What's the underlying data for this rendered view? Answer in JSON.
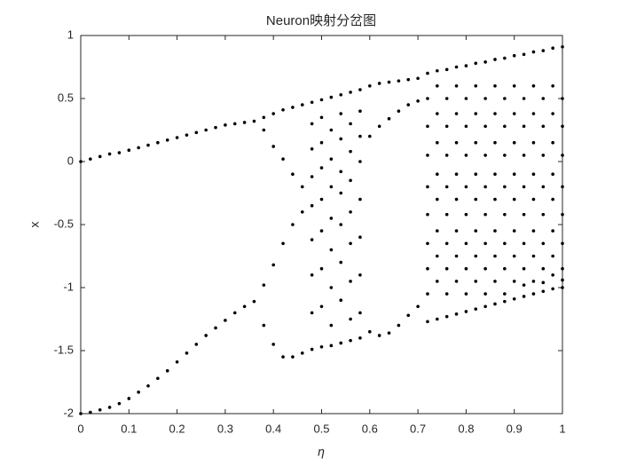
{
  "chart_data": {
    "type": "scatter",
    "title": "Neuron映射分岔图",
    "x_label": "η",
    "y_label": "x",
    "color": "#000000",
    "xlim": [
      0,
      1
    ],
    "ylim": [
      -2,
      1
    ],
    "xticks": [
      0,
      0.1,
      0.2,
      0.3,
      0.4,
      0.5,
      0.6,
      0.7,
      0.8,
      0.9,
      1
    ],
    "yticks": [
      -2,
      -1.5,
      -1,
      -0.5,
      0,
      0.5,
      1
    ],
    "x": [
      0,
      0.02,
      0.04,
      0.06,
      0.08,
      0.1,
      0.12,
      0.14,
      0.16,
      0.18,
      0.2,
      0.22,
      0.24,
      0.26,
      0.28,
      0.3,
      0.32,
      0.34,
      0.36,
      0,
      0.02,
      0.04,
      0.06,
      0.08,
      0.1,
      0.12,
      0.14,
      0.16,
      0.18,
      0.2,
      0.22,
      0.24,
      0.26,
      0.28,
      0.3,
      0.32,
      0.34,
      0.36,
      0.38,
      0.38,
      0.38,
      0.38,
      0.4,
      0.4,
      0.4,
      0.4,
      0.42,
      0.42,
      0.42,
      0.42,
      0.44,
      0.44,
      0.44,
      0.44,
      0.46,
      0.46,
      0.46,
      0.46,
      0.48,
      0.48,
      0.48,
      0.48,
      0.48,
      0.48,
      0.48,
      0.48,
      0.48,
      0.5,
      0.5,
      0.5,
      0.5,
      0.5,
      0.5,
      0.5,
      0.5,
      0.5,
      0.52,
      0.52,
      0.52,
      0.52,
      0.52,
      0.52,
      0.52,
      0.52,
      0.52,
      0.54,
      0.54,
      0.54,
      0.54,
      0.54,
      0.54,
      0.54,
      0.54,
      0.54,
      0.56,
      0.56,
      0.56,
      0.56,
      0.56,
      0.56,
      0.56,
      0.56,
      0.56,
      0.58,
      0.58,
      0.58,
      0.58,
      0.58,
      0.58,
      0.58,
      0.58,
      0.58,
      0.6,
      0.6,
      0.6,
      0.62,
      0.62,
      0.62,
      0.64,
      0.64,
      0.64,
      0.66,
      0.66,
      0.66,
      0.68,
      0.68,
      0.68,
      0.7,
      0.7,
      0.7,
      0.72,
      0.72,
      0.72,
      0.72,
      0.72,
      0.72,
      0.72,
      0.72,
      0.72,
      0.72,
      0.74,
      0.74,
      0.74,
      0.74,
      0.74,
      0.74,
      0.74,
      0.74,
      0.74,
      0.74,
      0.76,
      0.76,
      0.76,
      0.76,
      0.76,
      0.76,
      0.76,
      0.76,
      0.76,
      0.76,
      0.78,
      0.78,
      0.78,
      0.78,
      0.78,
      0.78,
      0.78,
      0.78,
      0.78,
      0.78,
      0.8,
      0.8,
      0.8,
      0.8,
      0.8,
      0.8,
      0.8,
      0.8,
      0.8,
      0.8,
      0.82,
      0.82,
      0.82,
      0.82,
      0.82,
      0.82,
      0.82,
      0.82,
      0.82,
      0.82,
      0.84,
      0.84,
      0.84,
      0.84,
      0.84,
      0.84,
      0.84,
      0.84,
      0.84,
      0.84,
      0.86,
      0.86,
      0.86,
      0.86,
      0.86,
      0.86,
      0.86,
      0.86,
      0.86,
      0.86,
      0.88,
      0.88,
      0.88,
      0.88,
      0.88,
      0.88,
      0.88,
      0.88,
      0.88,
      0.88,
      0.9,
      0.9,
      0.9,
      0.9,
      0.9,
      0.9,
      0.9,
      0.9,
      0.9,
      0.9,
      0.92,
      0.92,
      0.92,
      0.92,
      0.92,
      0.92,
      0.92,
      0.92,
      0.92,
      0.92,
      0.94,
      0.94,
      0.94,
      0.94,
      0.94,
      0.94,
      0.94,
      0.94,
      0.94,
      0.94,
      0.96,
      0.96,
      0.96,
      0.96,
      0.96,
      0.96,
      0.96,
      0.96,
      0.96,
      0.96,
      0.98,
      0.98,
      0.98,
      0.98,
      0.98,
      0.98,
      0.98,
      0.98,
      0.98,
      0.98,
      1,
      1,
      1,
      1,
      1,
      1,
      1,
      1,
      1,
      1
    ],
    "y": [
      0,
      0.02,
      0.04,
      0.06,
      0.07,
      0.09,
      0.11,
      0.13,
      0.15,
      0.17,
      0.19,
      0.21,
      0.23,
      0.25,
      0.27,
      0.29,
      0.3,
      0.31,
      0.32,
      -2,
      -1.99,
      -1.97,
      -1.95,
      -1.92,
      -1.88,
      -1.83,
      -1.78,
      -1.72,
      -1.66,
      -1.59,
      -1.52,
      -1.45,
      -1.38,
      -1.32,
      -1.26,
      -1.2,
      -1.15,
      -1.11,
      0.35,
      0.25,
      -0.98,
      -1.3,
      0.38,
      0.12,
      -0.82,
      -1.45,
      0.41,
      0.02,
      -0.65,
      -1.55,
      0.43,
      -0.1,
      -0.5,
      -1.55,
      0.45,
      -0.2,
      -0.4,
      -1.52,
      0.47,
      0.3,
      0.1,
      -0.12,
      -0.35,
      -0.62,
      -0.9,
      -1.2,
      -1.49,
      0.49,
      0.35,
      0.15,
      -0.05,
      -0.3,
      -0.55,
      -0.85,
      -1.15,
      -1.47,
      0.51,
      0.25,
      0.02,
      -0.2,
      -0.45,
      -0.7,
      -1,
      -1.3,
      -1.46,
      0.53,
      0.38,
      0.18,
      -0.08,
      -0.25,
      -0.5,
      -0.8,
      -1.1,
      -1.44,
      0.55,
      0.3,
      0.08,
      -0.15,
      -0.4,
      -0.65,
      -0.95,
      -1.25,
      -1.42,
      0.57,
      0.4,
      0.2,
      0,
      -0.3,
      -0.6,
      -0.9,
      -1.2,
      -1.4,
      0.6,
      0.2,
      -1.35,
      0.62,
      0.28,
      -1.38,
      0.63,
      0.34,
      -1.36,
      0.64,
      0.4,
      -1.3,
      0.65,
      0.45,
      -1.22,
      0.66,
      0.48,
      -1.15,
      0.7,
      0.5,
      0.28,
      0.05,
      -0.2,
      -0.42,
      -0.65,
      -0.85,
      -1.05,
      -1.27,
      0.72,
      0.6,
      0.38,
      0.15,
      -0.1,
      -0.3,
      -0.55,
      -0.75,
      -0.95,
      -1.25,
      0.73,
      0.5,
      0.28,
      0.05,
      -0.2,
      -0.42,
      -0.65,
      -0.85,
      -1.05,
      -1.23,
      0.75,
      0.6,
      0.38,
      0.15,
      -0.1,
      -0.3,
      -0.55,
      -0.75,
      -0.95,
      -1.21,
      0.76,
      0.5,
      0.28,
      0.05,
      -0.2,
      -0.42,
      -0.65,
      -0.85,
      -1.05,
      -1.19,
      0.78,
      0.6,
      0.38,
      0.15,
      -0.1,
      -0.3,
      -0.55,
      -0.75,
      -0.95,
      -1.17,
      0.79,
      0.5,
      0.28,
      0.05,
      -0.2,
      -0.42,
      -0.65,
      -0.85,
      -1.05,
      -1.15,
      0.81,
      0.6,
      0.38,
      0.15,
      -0.1,
      -0.3,
      -0.55,
      -0.75,
      -0.95,
      -1.13,
      0.82,
      0.5,
      0.28,
      0.05,
      -0.2,
      -0.42,
      -0.65,
      -0.85,
      -1.05,
      -1.11,
      0.84,
      0.6,
      0.38,
      0.15,
      -0.1,
      -0.3,
      -0.55,
      -0.75,
      -0.95,
      -1.09,
      0.85,
      0.5,
      0.28,
      0.05,
      -0.2,
      -0.42,
      -0.65,
      -0.85,
      -0.98,
      -1.07,
      0.87,
      0.6,
      0.38,
      0.15,
      -0.1,
      -0.3,
      -0.55,
      -0.75,
      -0.95,
      -1.05,
      0.88,
      0.5,
      0.28,
      0.05,
      -0.2,
      -0.42,
      -0.65,
      -0.85,
      -0.96,
      -1.03,
      0.9,
      0.6,
      0.38,
      0.15,
      -0.1,
      -0.3,
      -0.55,
      -0.75,
      -0.9,
      -1.01,
      0.91,
      0.5,
      0.28,
      0.05,
      -0.2,
      -0.42,
      -0.65,
      -0.85,
      -0.94,
      -1
    ]
  }
}
